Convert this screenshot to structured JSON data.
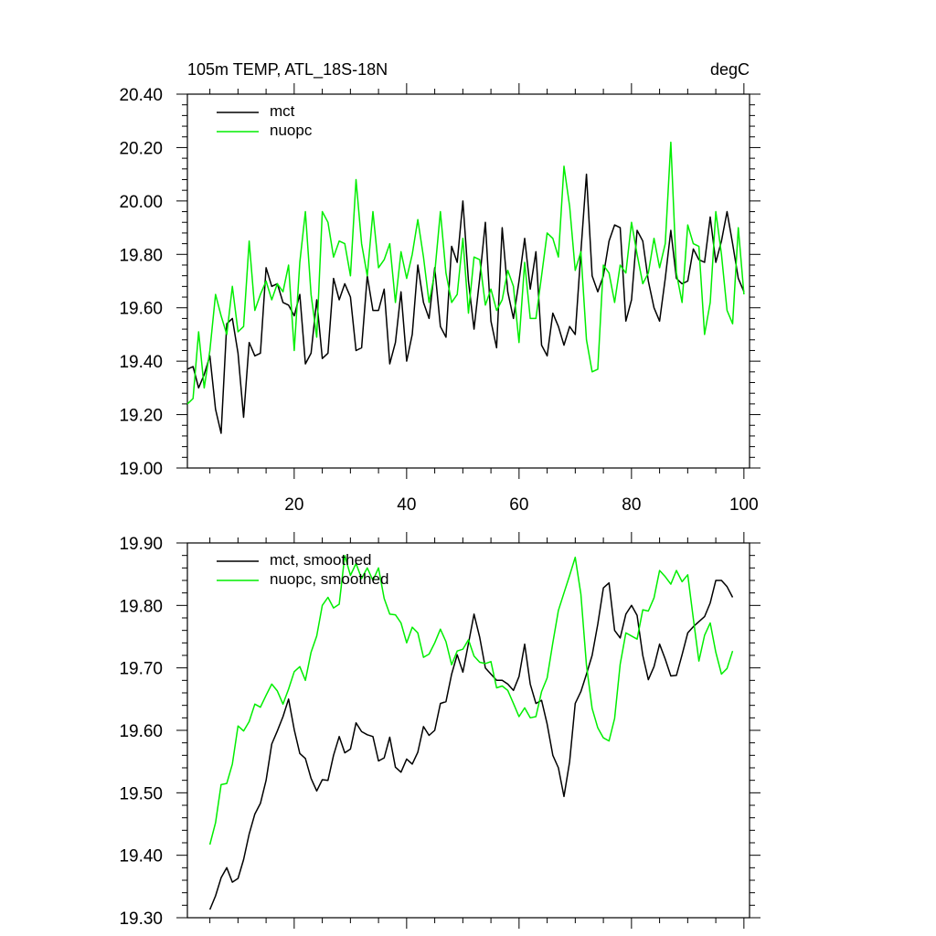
{
  "chart_data": [
    {
      "type": "line",
      "title": "105m TEMP, ATL_18S-18N",
      "units": "degC",
      "xlabel": "",
      "ylabel": "",
      "xlim": [
        1,
        101
      ],
      "ylim": [
        19.0,
        20.4
      ],
      "xticks": [
        20,
        40,
        60,
        80,
        100
      ],
      "xtick_labels": [
        "20",
        "40",
        "60",
        "80",
        "100"
      ],
      "yticks": [
        19.0,
        19.2,
        19.4,
        19.6,
        19.8,
        20.0,
        20.2,
        20.4
      ],
      "ytick_labels": [
        "19.00",
        "19.20",
        "19.40",
        "19.60",
        "19.80",
        "20.00",
        "20.20",
        "20.40"
      ],
      "legend_position": "top-left",
      "x_start": 1,
      "series": [
        {
          "name": "mct",
          "color": "#000000",
          "values": [
            19.37,
            19.38,
            19.3,
            19.35,
            19.42,
            19.22,
            19.13,
            19.54,
            19.56,
            19.43,
            19.19,
            19.47,
            19.42,
            19.43,
            19.75,
            19.68,
            19.69,
            19.62,
            19.61,
            19.57,
            19.65,
            19.39,
            19.43,
            19.63,
            19.41,
            19.43,
            19.71,
            19.63,
            19.69,
            19.64,
            19.44,
            19.45,
            19.72,
            19.59,
            19.59,
            19.67,
            19.39,
            19.47,
            19.66,
            19.4,
            19.5,
            19.76,
            19.62,
            19.56,
            19.75,
            19.53,
            19.49,
            19.83,
            19.77,
            20.0,
            19.7,
            19.52,
            19.71,
            19.92,
            19.55,
            19.45,
            19.9,
            19.66,
            19.56,
            19.7,
            19.86,
            19.67,
            19.81,
            19.46,
            19.42,
            19.58,
            19.53,
            19.46,
            19.53,
            19.5,
            19.81,
            20.1,
            19.72,
            19.66,
            19.72,
            19.85,
            19.91,
            19.9,
            19.55,
            19.63,
            19.89,
            19.85,
            19.7,
            19.6,
            19.55,
            19.71,
            19.89,
            19.71,
            19.69,
            19.7,
            19.82,
            19.78,
            19.77,
            19.94,
            19.77,
            19.85,
            19.96,
            19.84,
            19.71,
            19.66
          ]
        },
        {
          "name": "nuopc",
          "color": "#00ee00",
          "values": [
            19.24,
            19.26,
            19.51,
            19.3,
            19.44,
            19.65,
            19.57,
            19.5,
            19.68,
            19.51,
            19.53,
            19.85,
            19.59,
            19.65,
            19.7,
            19.63,
            19.69,
            19.66,
            19.76,
            19.44,
            19.77,
            19.96,
            19.65,
            19.49,
            19.96,
            19.92,
            19.79,
            19.85,
            19.84,
            19.72,
            20.08,
            19.84,
            19.72,
            19.96,
            19.75,
            19.78,
            19.84,
            19.62,
            19.81,
            19.71,
            19.8,
            19.93,
            19.79,
            19.62,
            19.73,
            19.96,
            19.73,
            19.62,
            19.65,
            19.86,
            19.58,
            19.79,
            19.78,
            19.61,
            19.67,
            19.59,
            19.63,
            19.74,
            19.68,
            19.47,
            19.77,
            19.56,
            19.56,
            19.72,
            19.88,
            19.86,
            19.79,
            20.13,
            19.98,
            19.74,
            19.81,
            19.48,
            19.36,
            19.37,
            19.76,
            19.73,
            19.62,
            19.76,
            19.73,
            19.92,
            19.8,
            19.69,
            19.73,
            19.86,
            19.75,
            19.84,
            20.22,
            19.73,
            19.62,
            19.91,
            19.84,
            19.83,
            19.5,
            19.62,
            19.96,
            19.8,
            19.59,
            19.54,
            19.9,
            19.65
          ]
        }
      ]
    },
    {
      "type": "line",
      "title": "",
      "xlabel": "",
      "ylabel": "",
      "xlim": [
        1,
        101
      ],
      "ylim": [
        19.3,
        19.9
      ],
      "xticks": [
        20,
        40,
        60,
        80,
        100
      ],
      "xtick_labels": [],
      "yticks": [
        19.3,
        19.4,
        19.5,
        19.6,
        19.7,
        19.8,
        19.9
      ],
      "ytick_labels": [
        "19.30",
        "19.40",
        "19.50",
        "19.60",
        "19.70",
        "19.80",
        "19.90"
      ],
      "legend_position": "top-left",
      "x_start": 5,
      "series": [
        {
          "name": "mct, smoothed",
          "color": "#000000",
          "values": [
            19.313,
            19.335,
            19.364,
            19.38,
            19.357,
            19.363,
            19.393,
            19.434,
            19.466,
            19.483,
            19.52,
            19.578,
            19.599,
            19.622,
            19.65,
            19.601,
            19.563,
            19.555,
            19.523,
            19.503,
            19.521,
            19.52,
            19.56,
            19.59,
            19.564,
            19.57,
            19.612,
            19.598,
            19.593,
            19.59,
            19.551,
            19.556,
            19.589,
            19.541,
            19.533,
            19.554,
            19.546,
            19.565,
            19.606,
            19.592,
            19.6,
            19.643,
            19.646,
            19.69,
            19.721,
            19.693,
            19.739,
            19.786,
            19.749,
            19.7,
            19.69,
            19.68,
            19.68,
            19.674,
            19.664,
            19.686,
            19.738,
            19.674,
            19.643,
            19.648,
            19.61,
            19.56,
            19.54,
            19.494,
            19.55,
            19.643,
            19.662,
            19.69,
            19.72,
            19.77,
            19.828,
            19.836,
            19.76,
            19.748,
            19.786,
            19.8,
            19.784,
            19.72,
            19.681,
            19.702,
            19.738,
            19.714,
            19.687,
            19.688,
            19.721,
            19.756,
            19.766,
            19.774,
            19.782,
            19.804,
            19.84,
            19.84,
            19.83,
            19.813
          ]
        },
        {
          "name": "nuopc, smoothed",
          "color": "#00ee00",
          "values": [
            19.417,
            19.452,
            19.513,
            19.515,
            19.546,
            19.607,
            19.599,
            19.614,
            19.642,
            19.637,
            19.656,
            19.674,
            19.663,
            19.642,
            19.666,
            19.694,
            19.702,
            19.68,
            19.725,
            19.751,
            19.8,
            19.813,
            19.796,
            19.802,
            19.88,
            19.848,
            19.867,
            19.843,
            19.86,
            19.84,
            19.86,
            19.811,
            19.786,
            19.785,
            19.772,
            19.74,
            19.765,
            19.756,
            19.717,
            19.722,
            19.74,
            19.762,
            19.742,
            19.705,
            19.727,
            19.73,
            19.745,
            19.719,
            19.709,
            19.707,
            19.71,
            19.668,
            19.671,
            19.664,
            19.643,
            19.622,
            19.636,
            19.62,
            19.622,
            19.662,
            19.684,
            19.74,
            19.792,
            19.82,
            19.848,
            19.877,
            19.818,
            19.704,
            19.635,
            19.604,
            19.588,
            19.583,
            19.619,
            19.706,
            19.756,
            19.751,
            19.746,
            19.793,
            19.791,
            19.812,
            19.856,
            19.846,
            19.834,
            19.856,
            19.838,
            19.849,
            19.779,
            19.711,
            19.752,
            19.772,
            19.725,
            19.69,
            19.699,
            19.727
          ]
        }
      ]
    }
  ]
}
